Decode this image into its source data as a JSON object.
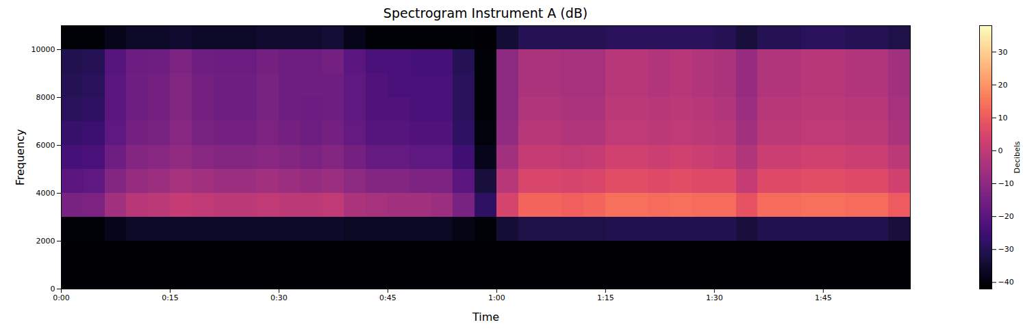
{
  "chart_data": {
    "type": "heatmap",
    "title": "Spectrogram Instrument A (dB)",
    "x_label": "Time",
    "y_label": "Frequency",
    "color": "magma",
    "xlim": [
      0,
      117
    ],
    "xticks": [
      {
        "value": 0,
        "label": "0:00"
      },
      {
        "value": 15,
        "label": "0:15"
      },
      {
        "value": 30,
        "label": "0:30"
      },
      {
        "value": 45,
        "label": "0:45"
      },
      {
        "value": 60,
        "label": "1:00"
      },
      {
        "value": 75,
        "label": "1:15"
      },
      {
        "value": 90,
        "label": "1:30"
      },
      {
        "value": 105,
        "label": "1:45"
      }
    ],
    "ylim": [
      0,
      11000
    ],
    "yticks": [
      0,
      2000,
      4000,
      6000,
      8000,
      10000
    ],
    "time_bins": [
      0,
      3,
      6,
      9,
      12,
      15,
      18,
      21,
      24,
      27,
      30,
      33,
      36,
      39,
      42,
      45,
      48,
      51,
      54,
      57,
      60,
      63,
      66,
      69,
      72,
      75,
      78,
      81,
      84,
      87,
      90,
      93,
      96,
      99,
      102,
      105,
      108,
      111,
      114,
      117
    ],
    "freq_bins": [
      0,
      1000,
      2000,
      3000,
      4000,
      5000,
      6000,
      7000,
      8000,
      9000,
      10000,
      11000
    ],
    "cells": [
      [
        -42,
        -42,
        -42,
        -42,
        -42,
        -42,
        -42,
        -42,
        -42,
        -42,
        -42,
        -42,
        -42,
        -42,
        -42,
        -42,
        -42,
        -42,
        -42,
        -42,
        -42,
        -42,
        -42,
        -42,
        -42,
        -42,
        -42,
        -42,
        -42,
        -42,
        -42,
        -42,
        -42,
        -42,
        -42,
        -42,
        -42,
        -42,
        -42
      ],
      [
        -42,
        -42,
        -42,
        -42,
        -42,
        -42,
        -42,
        -42,
        -42,
        -42,
        -42,
        -42,
        -42,
        -42,
        -42,
        -42,
        -42,
        -42,
        -42,
        -42,
        -42,
        -42,
        -42,
        -42,
        -42,
        -42,
        -42,
        -42,
        -42,
        -42,
        -42,
        -42,
        -42,
        -42,
        -42,
        -42,
        -42,
        -42,
        -42
      ],
      [
        -41,
        -41,
        -38,
        -36,
        -36,
        -36,
        -36,
        -36,
        -36,
        -36,
        -36,
        -36,
        -36,
        -37,
        -37,
        -37,
        -37,
        -37,
        -39,
        -41,
        -34,
        -32,
        -32,
        -32,
        -32,
        -31,
        -31,
        -31,
        -31,
        -31,
        -31,
        -33,
        -31,
        -31,
        -31,
        -31,
        -31,
        -31,
        -33
      ],
      [
        -14,
        -13,
        -6,
        -2,
        -1,
        1,
        0,
        -1,
        -1,
        0,
        -1,
        -1,
        0,
        -4,
        -5,
        -6,
        -6,
        -7,
        -14,
        -28,
        4,
        12,
        12,
        11,
        12,
        14,
        14,
        13,
        14,
        13,
        13,
        8,
        13,
        13,
        14,
        14,
        13,
        13,
        10
      ],
      [
        -20,
        -19,
        -12,
        -8,
        -7,
        -5,
        -6,
        -7,
        -7,
        -6,
        -7,
        -8,
        -7,
        -10,
        -12,
        -12,
        -13,
        -13,
        -20,
        -33,
        -2,
        5,
        5,
        4,
        5,
        7,
        7,
        6,
        7,
        6,
        6,
        1,
        6,
        6,
        7,
        7,
        6,
        6,
        3
      ],
      [
        -24,
        -23,
        -16,
        -12,
        -11,
        -9,
        -11,
        -12,
        -12,
        -11,
        -12,
        -13,
        -12,
        -15,
        -18,
        -18,
        -19,
        -19,
        -25,
        -38,
        -6,
        1,
        1,
        0,
        1,
        3,
        3,
        2,
        3,
        2,
        1,
        -3,
        2,
        2,
        3,
        3,
        2,
        2,
        -1
      ],
      [
        -27,
        -26,
        -19,
        -15,
        -14,
        -11,
        -14,
        -15,
        -15,
        -13,
        -15,
        -16,
        -15,
        -18,
        -21,
        -21,
        -22,
        -22,
        -28,
        -40,
        -9,
        -2,
        -2,
        -3,
        -3,
        0,
        0,
        -1,
        0,
        -1,
        -2,
        -6,
        -1,
        -1,
        0,
        0,
        -1,
        -1,
        -4
      ],
      [
        -29,
        -28,
        -20,
        -16,
        -15,
        -12,
        -15,
        -16,
        -16,
        -14,
        -16,
        -17,
        -16,
        -19,
        -22,
        -22,
        -23,
        -23,
        -29,
        -41,
        -10,
        -3,
        -3,
        -4,
        -4,
        -1,
        -1,
        -2,
        -1,
        -2,
        -3,
        -7,
        -2,
        -2,
        -1,
        -1,
        -2,
        -2,
        -5
      ],
      [
        -30,
        -29,
        -20,
        -16,
        -15,
        -12,
        -15,
        -16,
        -16,
        -14,
        -16,
        -16,
        -16,
        -19,
        -22,
        -23,
        -23,
        -23,
        -29,
        -41,
        -10,
        -4,
        -4,
        -5,
        -5,
        -2,
        -2,
        -3,
        -2,
        -3,
        -4,
        -8,
        -3,
        -3,
        -2,
        -2,
        -3,
        -3,
        -6
      ],
      [
        -31,
        -30,
        -21,
        -17,
        -16,
        -13,
        -16,
        -17,
        -17,
        -15,
        -16,
        -16,
        -15,
        -20,
        -23,
        -23,
        -24,
        -24,
        -30,
        -41,
        -10,
        -4,
        -4,
        -5,
        -5,
        -2,
        -2,
        -3,
        -2,
        -3,
        -4,
        -8,
        -3,
        -3,
        -2,
        -2,
        -3,
        -3,
        -6
      ],
      [
        -41,
        -41,
        -38,
        -36,
        -36,
        -35,
        -36,
        -36,
        -36,
        -35,
        -35,
        -35,
        -34,
        -38,
        -41,
        -41,
        -41,
        -41,
        -41,
        -42,
        -34,
        -30,
        -30,
        -30,
        -30,
        -29,
        -29,
        -29,
        -29,
        -29,
        -30,
        -33,
        -30,
        -30,
        -29,
        -29,
        -30,
        -30,
        -32
      ]
    ],
    "colorbar": {
      "label": "Decibels",
      "range": [
        -42,
        38
      ],
      "ticks": [
        {
          "value": -40,
          "label": "−40"
        },
        {
          "value": -30,
          "label": "−30"
        },
        {
          "value": -20,
          "label": "−20"
        },
        {
          "value": -10,
          "label": "−10"
        },
        0,
        10,
        20,
        30
      ]
    }
  }
}
